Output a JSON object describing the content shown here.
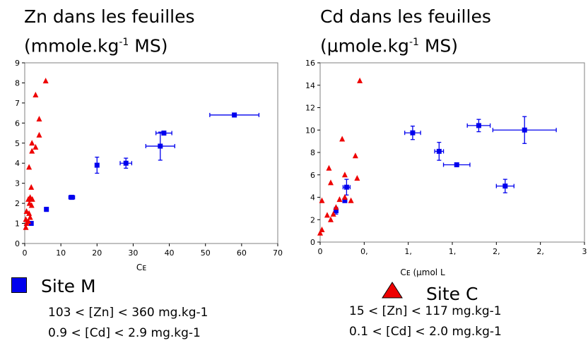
{
  "panel_left": {
    "title_line1": "Zn dans les feuilles",
    "title_unit_pre": "(mmole.kg",
    "title_unit_sup": "-1",
    "title_unit_post": " MS)"
  },
  "panel_right": {
    "title_line1": "Cd dans les feuilles",
    "title_unit_pre": "(µmole.kg",
    "title_unit_sup": "-1",
    "title_unit_post": " MS)"
  },
  "legend": {
    "site_m": {
      "label": "Site M",
      "line1": "103 < [Zn] < 360 mg.kg-1",
      "line2": "0.9 < [Cd] < 2.9 mg.kg-1",
      "color": "#0000ee"
    },
    "site_c": {
      "label": "Site C",
      "line1": "15 < [Zn] < 117 mg.kg-1",
      "line2": "0.1 < [Cd] < 2.0 mg.kg-1",
      "color": "#ee0000"
    }
  },
  "chart_data": [
    {
      "type": "scatter",
      "xlabel": "Cᴇ",
      "xlim": [
        0,
        70
      ],
      "ylim": [
        0,
        9
      ],
      "x_ticks": [
        "0",
        "10",
        "20",
        "30",
        "40",
        "50",
        "60",
        "70"
      ],
      "y_ticks": [
        "0",
        "1",
        "2",
        "3",
        "4",
        "5",
        "6",
        "7",
        "8",
        "9"
      ],
      "series": [
        {
          "marker": "square",
          "color": "#0000ee",
          "points": [
            {
              "x": 1.8,
              "y": 1.0,
              "xerr": 0.3,
              "yerr": 0.05
            },
            {
              "x": 6.0,
              "y": 1.7,
              "xerr": 0.4,
              "yerr": 0.1
            },
            {
              "x": 13.0,
              "y": 2.3,
              "xerr": 0.8,
              "yerr": 0.1
            },
            {
              "x": 20.0,
              "y": 3.9,
              "xerr": 0.4,
              "yerr": 0.4
            },
            {
              "x": 28.0,
              "y": 4.0,
              "xerr": 1.6,
              "yerr": 0.25
            },
            {
              "x": 37.5,
              "y": 4.85,
              "xerr": 4.0,
              "yerr": 0.7
            },
            {
              "x": 38.5,
              "y": 5.5,
              "xerr": 2.2,
              "yerr": 0.1
            },
            {
              "x": 58.0,
              "y": 6.4,
              "xerr": 6.8,
              "yerr": 0.1
            }
          ]
        },
        {
          "marker": "triangle",
          "color": "#ee0000",
          "points": [
            {
              "x": 0.3,
              "y": 0.8
            },
            {
              "x": 0.5,
              "y": 1.0
            },
            {
              "x": 0.3,
              "y": 1.2
            },
            {
              "x": 0.5,
              "y": 1.6
            },
            {
              "x": 1.2,
              "y": 1.5
            },
            {
              "x": 1.0,
              "y": 1.1
            },
            {
              "x": 1.5,
              "y": 1.3
            },
            {
              "x": 1.3,
              "y": 2.0
            },
            {
              "x": 1.5,
              "y": 2.3
            },
            {
              "x": 1.0,
              "y": 2.2
            },
            {
              "x": 1.9,
              "y": 1.9
            },
            {
              "x": 2.1,
              "y": 2.2
            },
            {
              "x": 1.8,
              "y": 2.8
            },
            {
              "x": 1.2,
              "y": 3.8
            },
            {
              "x": 2.0,
              "y": 4.6
            },
            {
              "x": 2.0,
              "y": 5.0
            },
            {
              "x": 3.0,
              "y": 4.8
            },
            {
              "x": 4.0,
              "y": 5.4
            },
            {
              "x": 4.0,
              "y": 6.2
            },
            {
              "x": 3.0,
              "y": 7.4
            },
            {
              "x": 5.8,
              "y": 8.1
            }
          ]
        }
      ]
    },
    {
      "type": "scatter",
      "xlabel": "Cᴇ (µmol L",
      "xlim": [
        0,
        3
      ],
      "ylim": [
        0,
        16
      ],
      "x_ticks": [
        "0",
        "0,",
        "1,",
        "1,",
        "2,",
        "2,",
        "3"
      ],
      "y_ticks": [
        "0",
        "2",
        "4",
        "6",
        "8",
        "10",
        "12",
        "14",
        "16"
      ],
      "series": [
        {
          "marker": "square",
          "color": "#0000ee",
          "points": [
            {
              "x": 0.18,
              "y": 2.8,
              "xerr": 0.02,
              "yerr": 0.3
            },
            {
              "x": 0.3,
              "y": 4.9,
              "xerr": 0.04,
              "yerr": 0.7
            },
            {
              "x": 0.28,
              "y": 3.7,
              "xerr": 0.02,
              "yerr": 0.1
            },
            {
              "x": 1.05,
              "y": 9.75,
              "xerr": 0.09,
              "yerr": 0.6
            },
            {
              "x": 1.35,
              "y": 8.1,
              "xerr": 0.05,
              "yerr": 0.8
            },
            {
              "x": 1.55,
              "y": 6.9,
              "xerr": 0.15,
              "yerr": 0.1
            },
            {
              "x": 1.8,
              "y": 10.4,
              "xerr": 0.13,
              "yerr": 0.55
            },
            {
              "x": 2.1,
              "y": 5.0,
              "xerr": 0.1,
              "yerr": 0.6
            },
            {
              "x": 2.32,
              "y": 10.0,
              "xerr": 0.36,
              "yerr": 1.2
            }
          ]
        },
        {
          "marker": "triangle",
          "color": "#ee0000",
          "points": [
            {
              "x": 0.0,
              "y": 0.8
            },
            {
              "x": 0.02,
              "y": 1.1
            },
            {
              "x": 0.02,
              "y": 3.7
            },
            {
              "x": 0.08,
              "y": 2.4
            },
            {
              "x": 0.12,
              "y": 2.0
            },
            {
              "x": 0.15,
              "y": 2.5
            },
            {
              "x": 0.18,
              "y": 3.1
            },
            {
              "x": 0.12,
              "y": 5.3
            },
            {
              "x": 0.1,
              "y": 6.6
            },
            {
              "x": 0.22,
              "y": 3.8
            },
            {
              "x": 0.28,
              "y": 4.0
            },
            {
              "x": 0.35,
              "y": 3.7
            },
            {
              "x": 0.42,
              "y": 5.7
            },
            {
              "x": 0.28,
              "y": 6.0
            },
            {
              "x": 0.4,
              "y": 7.7
            },
            {
              "x": 0.25,
              "y": 9.2
            },
            {
              "x": 0.45,
              "y": 14.4
            }
          ]
        }
      ]
    }
  ]
}
